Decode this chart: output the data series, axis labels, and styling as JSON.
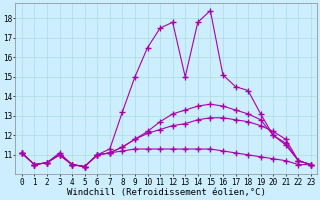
{
  "bg_color": "#cceeff",
  "line_color": "#aa00aa",
  "marker": "+",
  "linewidth": 0.8,
  "markersize": 4,
  "markeredgewidth": 1.0,
  "xlabel": "Windchill (Refroidissement éolien,°C)",
  "xlabel_fontsize": 6.5,
  "tick_fontsize": 5.5,
  "xlim": [
    -0.5,
    23.5
  ],
  "ylim": [
    10.0,
    18.8
  ],
  "yticks": [
    11,
    12,
    13,
    14,
    15,
    16,
    17,
    18
  ],
  "ytick_labels": [
    "11",
    "12",
    "13",
    "14",
    "15",
    "16",
    "17",
    "18"
  ],
  "xticks": [
    0,
    1,
    2,
    3,
    4,
    5,
    6,
    7,
    8,
    9,
    10,
    11,
    12,
    13,
    14,
    15,
    16,
    17,
    18,
    19,
    20,
    21,
    22,
    23
  ],
  "grid_color": "#aadddd",
  "grid_linewidth": 0.5,
  "series": [
    [
      11.1,
      10.5,
      10.6,
      11.1,
      10.5,
      10.4,
      11.0,
      11.1,
      11.2,
      11.3,
      11.3,
      11.3,
      11.3,
      11.3,
      11.3,
      11.3,
      11.2,
      11.1,
      11.0,
      10.9,
      10.8,
      10.7,
      10.5,
      10.5
    ],
    [
      11.1,
      10.5,
      10.6,
      11.0,
      10.5,
      10.4,
      11.0,
      11.1,
      11.4,
      11.8,
      12.1,
      12.3,
      12.5,
      12.6,
      12.8,
      12.9,
      12.9,
      12.8,
      12.7,
      12.5,
      12.2,
      11.8,
      10.7,
      10.5
    ],
    [
      11.1,
      10.5,
      10.6,
      11.0,
      10.5,
      10.4,
      11.0,
      11.1,
      11.4,
      11.8,
      12.2,
      12.7,
      13.1,
      13.3,
      13.5,
      13.6,
      13.5,
      13.3,
      13.1,
      12.8,
      12.0,
      11.5,
      10.7,
      10.5
    ],
    [
      11.1,
      10.5,
      10.6,
      11.0,
      10.5,
      10.4,
      11.0,
      11.3,
      13.2,
      15.0,
      16.5,
      17.5,
      17.8,
      15.0,
      17.8,
      18.4,
      15.1,
      14.5,
      14.3,
      13.1,
      12.0,
      11.6,
      10.7,
      10.5
    ]
  ]
}
